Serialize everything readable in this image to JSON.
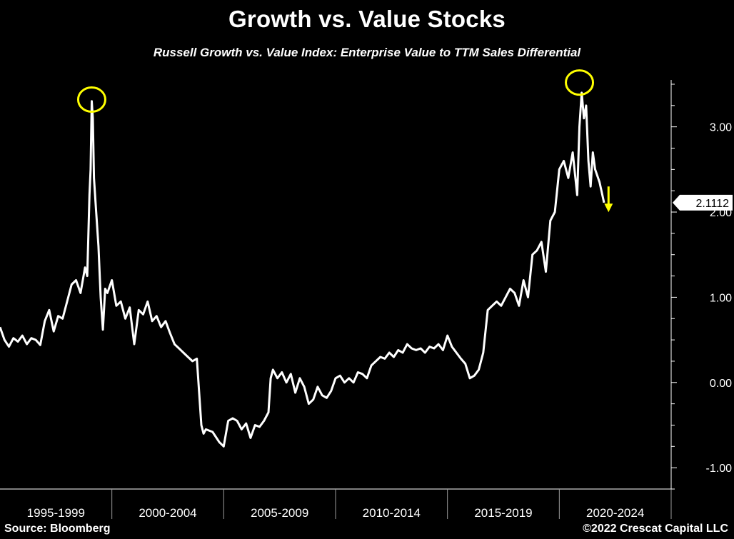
{
  "title": "Growth vs. Value Stocks",
  "subtitle": "Russell Growth vs. Value Index: Enterprise Value to TTM Sales Differential",
  "source": "Source: Bloomberg",
  "copyright": "©2022 Crescat Capital LLC",
  "colors": {
    "background": "#000000",
    "line": "#ffffff",
    "highlight": "#ffff00",
    "axis": "#ffffff"
  },
  "chart_data": {
    "type": "line",
    "title": "Growth vs. Value Stocks",
    "subtitle": "Russell Growth vs. Value Index: Enterprise Value to TTM Sales Differential",
    "xlabel": "",
    "ylabel": "",
    "x_range": [
      1995.0,
      2025.0
    ],
    "ylim": [
      -1.25,
      3.55
    ],
    "y_ticks": [
      -1.0,
      0.0,
      1.0,
      2.0,
      3.0
    ],
    "y_tick_labels": [
      "-1.00",
      "0.00",
      "1.00",
      "2.00",
      "3.00"
    ],
    "x_period_labels": [
      "1995-1999",
      "2000-2004",
      "2005-2009",
      "2010-2014",
      "2015-2019",
      "2020-2024"
    ],
    "last_value_label": "2.1112",
    "grid": false,
    "legend": "none",
    "annotations": [
      {
        "type": "circle",
        "x": 1999.1,
        "y": 3.32,
        "color": "#ffff00"
      },
      {
        "type": "circle",
        "x": 2020.9,
        "y": 3.52,
        "color": "#ffff00"
      },
      {
        "type": "down-arrow",
        "x": 2022.2,
        "y": 2.25,
        "color": "#ffff00"
      }
    ],
    "series": [
      {
        "x": [
          1995.0,
          1995.2,
          1995.4,
          1995.6,
          1995.8,
          1996.0,
          1996.2,
          1996.4,
          1996.6,
          1996.8,
          1997.0,
          1997.2,
          1997.4,
          1997.6,
          1997.8,
          1998.0,
          1998.2,
          1998.4,
          1998.6,
          1998.8,
          1998.9,
          1999.0,
          1999.05,
          1999.1,
          1999.15,
          1999.2,
          1999.3,
          1999.4,
          1999.5,
          1999.6,
          1999.7,
          1999.8,
          2000.0,
          2000.2,
          2000.4,
          2000.6,
          2000.8,
          2001.0,
          2001.2,
          2001.4,
          2001.6,
          2001.8,
          2002.0,
          2002.2,
          2002.4,
          2002.6,
          2002.8,
          2003.0,
          2003.2,
          2003.4,
          2003.6,
          2003.8,
          2004.0,
          2004.1,
          2004.2,
          2004.5,
          2004.8,
          2005.0,
          2005.2,
          2005.4,
          2005.6,
          2005.8,
          2006.0,
          2006.2,
          2006.4,
          2006.6,
          2006.8,
          2007.0,
          2007.1,
          2007.2,
          2007.4,
          2007.6,
          2007.8,
          2008.0,
          2008.2,
          2008.4,
          2008.6,
          2008.8,
          2009.0,
          2009.2,
          2009.4,
          2009.6,
          2009.8,
          2010.0,
          2010.2,
          2010.4,
          2010.6,
          2010.8,
          2011.0,
          2011.2,
          2011.4,
          2011.6,
          2011.8,
          2012.0,
          2012.2,
          2012.4,
          2012.6,
          2012.8,
          2013.0,
          2013.2,
          2013.4,
          2013.6,
          2013.8,
          2014.0,
          2014.2,
          2014.4,
          2014.6,
          2014.8,
          2015.0,
          2015.2,
          2015.4,
          2015.6,
          2015.8,
          2016.0,
          2016.2,
          2016.4,
          2016.6,
          2016.8,
          2017.0,
          2017.2,
          2017.4,
          2017.6,
          2017.8,
          2018.0,
          2018.2,
          2018.4,
          2018.6,
          2018.8,
          2019.0,
          2019.2,
          2019.4,
          2019.6,
          2019.8,
          2020.0,
          2020.2,
          2020.4,
          2020.6,
          2020.8,
          2020.9,
          2021.0,
          2021.1,
          2021.2,
          2021.3,
          2021.4,
          2021.5,
          2021.6,
          2021.8,
          2022.0
        ],
        "y": [
          0.65,
          0.5,
          0.42,
          0.52,
          0.48,
          0.55,
          0.45,
          0.52,
          0.5,
          0.44,
          0.72,
          0.85,
          0.6,
          0.78,
          0.75,
          0.95,
          1.15,
          1.2,
          1.05,
          1.35,
          1.25,
          2.2,
          2.5,
          3.3,
          3.1,
          2.4,
          2.0,
          1.6,
          1.0,
          0.62,
          1.1,
          1.05,
          1.2,
          0.9,
          0.95,
          0.75,
          0.88,
          0.45,
          0.85,
          0.8,
          0.95,
          0.72,
          0.78,
          0.65,
          0.72,
          0.58,
          0.45,
          0.4,
          0.35,
          0.3,
          0.25,
          0.28,
          -0.5,
          -0.6,
          -0.55,
          -0.58,
          -0.7,
          -0.75,
          -0.45,
          -0.42,
          -0.45,
          -0.55,
          -0.48,
          -0.65,
          -0.5,
          -0.52,
          -0.45,
          -0.35,
          0.05,
          0.15,
          0.05,
          0.12,
          0.0,
          0.1,
          -0.12,
          0.05,
          -0.05,
          -0.25,
          -0.2,
          -0.05,
          -0.15,
          -0.18,
          -0.1,
          0.05,
          0.08,
          0.0,
          0.05,
          0.0,
          0.12,
          0.1,
          0.05,
          0.2,
          0.25,
          0.3,
          0.28,
          0.35,
          0.3,
          0.38,
          0.35,
          0.45,
          0.4,
          0.38,
          0.4,
          0.35,
          0.42,
          0.4,
          0.45,
          0.38,
          0.55,
          0.42,
          0.35,
          0.28,
          0.22,
          0.05,
          0.08,
          0.15,
          0.35,
          0.85,
          0.9,
          0.95,
          0.9,
          1.0,
          1.1,
          1.05,
          0.9,
          1.2,
          1.0,
          1.5,
          1.55,
          1.65,
          1.3,
          1.9,
          2.0,
          2.5,
          2.6,
          2.4,
          2.7,
          2.2,
          3.0,
          3.4,
          3.1,
          3.25,
          2.6,
          2.3,
          2.7,
          2.5,
          2.35,
          2.11
        ]
      }
    ]
  }
}
